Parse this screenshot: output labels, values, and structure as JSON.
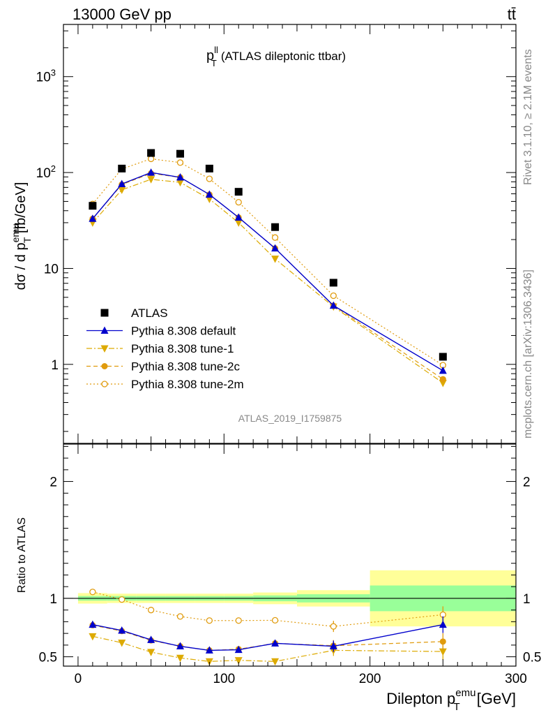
{
  "header": {
    "left": "13000 GeV pp",
    "right": "tt̄"
  },
  "side": {
    "rivet": "Rivet 3.1.10, ≥ 2.1M events",
    "mcplots": "mcplots.cern.ch [arXiv:1306.3436]"
  },
  "analysis_id": "ATLAS_2019_I1759875",
  "colors": {
    "atlas": "#000000",
    "default": "#0000cc",
    "tune1": "#ddaa00",
    "tune2c": "#e09b0d",
    "tune2m": "#e09b0d",
    "band_inner": "#99ff99",
    "band_outer": "#ffff99"
  },
  "chart_data": [
    {
      "type": "scatter",
      "title_main": "p",
      "title_sup": "ll",
      "title_sub": "T",
      "title_rest": "(ATLAS dileptonic ttbar)",
      "ylabel": {
        "a": "dσ / d p",
        "sup": "emu",
        "sub": "T",
        "b": " [fb/GeV]"
      },
      "yscale": "log",
      "ylim": [
        0.15,
        3500
      ],
      "xlim": [
        -10,
        300
      ],
      "y_ticks": [
        {
          "v": 1,
          "label": "1"
        },
        {
          "v": 10,
          "label": "10"
        },
        {
          "v": 100,
          "label": "10",
          "sup": "2"
        },
        {
          "v": 1000,
          "label": "10",
          "sup": "3"
        }
      ],
      "x": [
        10,
        30,
        50,
        70,
        90,
        110,
        135,
        175,
        250
      ],
      "series": [
        {
          "name": "ATLAS",
          "key": "atlas",
          "values": [
            45,
            110,
            160,
            157,
            110,
            63,
            27,
            7.1,
            1.2
          ]
        },
        {
          "name": "Pythia 8.308 default",
          "key": "default",
          "values": [
            33,
            76,
            100,
            89,
            59,
            34,
            16.2,
            4.1,
            0.86
          ]
        },
        {
          "name": "Pythia 8.308 tune-1",
          "key": "tune1",
          "values": [
            30,
            66,
            85,
            79,
            53,
            30,
            12.6,
            4.0,
            0.64
          ]
        },
        {
          "name": "Pythia 8.308 tune-2c",
          "key": "tune2c",
          "values": [
            33,
            75,
            98,
            89,
            59,
            34,
            16.2,
            4.1,
            0.7
          ]
        },
        {
          "name": "Pythia 8.308 tune-2m",
          "key": "tune2m",
          "values": [
            47,
            109,
            139,
            127,
            86,
            49,
            21,
            5.2,
            0.98
          ]
        }
      ]
    },
    {
      "type": "scatter",
      "ylabel": "Ratio to ATLAS",
      "xlabel": {
        "a": "Dilepton p",
        "sup": "emu",
        "sub": "T",
        "b": " [GeV]"
      },
      "ylim": [
        0.42,
        2.32
      ],
      "xlim": [
        -10,
        300
      ],
      "x_ticks": [
        0,
        100,
        200,
        300
      ],
      "y_ticks": [
        0.5,
        1,
        2
      ],
      "x": [
        10,
        30,
        50,
        70,
        90,
        110,
        135,
        175,
        250
      ],
      "bands": [
        {
          "x0": 0,
          "x1": 20,
          "inner": [
            0.98,
            1.02
          ],
          "outer": [
            0.955,
            1.045
          ]
        },
        {
          "x0": 20,
          "x1": 40,
          "inner": [
            0.98,
            1.02
          ],
          "outer": [
            0.96,
            1.04
          ]
        },
        {
          "x0": 40,
          "x1": 60,
          "inner": [
            0.98,
            1.02
          ],
          "outer": [
            0.96,
            1.04
          ]
        },
        {
          "x0": 60,
          "x1": 80,
          "inner": [
            0.98,
            1.02
          ],
          "outer": [
            0.96,
            1.04
          ]
        },
        {
          "x0": 80,
          "x1": 100,
          "inner": [
            0.98,
            1.02
          ],
          "outer": [
            0.96,
            1.04
          ]
        },
        {
          "x0": 100,
          "x1": 120,
          "inner": [
            0.98,
            1.02
          ],
          "outer": [
            0.96,
            1.04
          ]
        },
        {
          "x0": 120,
          "x1": 150,
          "inner": [
            0.975,
            1.025
          ],
          "outer": [
            0.95,
            1.05
          ]
        },
        {
          "x0": 150,
          "x1": 200,
          "inner": [
            0.965,
            1.035
          ],
          "outer": [
            0.93,
            1.07
          ]
        },
        {
          "x0": 200,
          "x1": 300,
          "inner": [
            0.89,
            1.11
          ],
          "outer": [
            0.76,
            1.24
          ]
        }
      ],
      "series": [
        {
          "key": "default",
          "values": [
            0.775,
            0.725,
            0.645,
            0.59,
            0.555,
            0.56,
            0.615,
            0.59,
            0.775
          ]
        },
        {
          "key": "tune1",
          "values": [
            0.675,
            0.62,
            0.54,
            0.49,
            0.46,
            0.47,
            0.46,
            0.555,
            0.545
          ]
        },
        {
          "key": "tune2c",
          "values": [
            0.77,
            0.72,
            0.64,
            0.59,
            0.555,
            0.565,
            0.615,
            0.595,
            0.63
          ]
        },
        {
          "key": "tune2m",
          "values": [
            1.055,
            0.99,
            0.9,
            0.845,
            0.81,
            0.81,
            0.812,
            0.76,
            0.86
          ]
        }
      ]
    }
  ]
}
